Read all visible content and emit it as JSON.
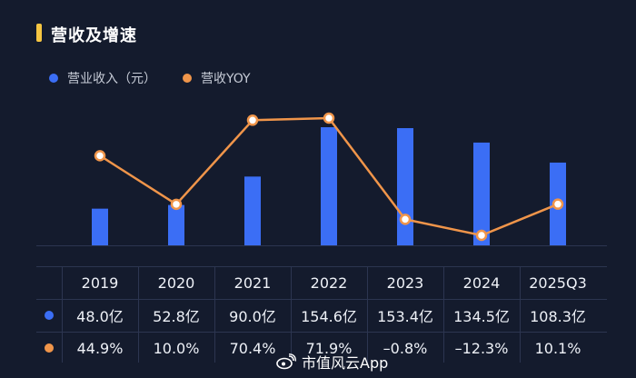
{
  "section_title": "营收及增速",
  "colors": {
    "accent": "#f5c542",
    "bar": "#3b6ef5",
    "line": "#f0954a",
    "background": "#141b2d"
  },
  "legend": {
    "revenue_label": "营业收入（元）",
    "yoy_label": "营收YOY"
  },
  "chart_data": {
    "type": "bar",
    "title": "营收及增速",
    "categories": [
      "2019",
      "2020",
      "2021",
      "2022",
      "2023",
      "2024",
      "2025Q3"
    ],
    "series": [
      {
        "name": "营业收入（元）",
        "type": "bar",
        "values": [
          48.0,
          52.8,
          90.0,
          154.6,
          153.4,
          134.5,
          108.3
        ],
        "labels": [
          "48.0亿",
          "52.8亿",
          "90.0亿",
          "154.6亿",
          "153.4亿",
          "134.5亿",
          "108.3亿"
        ]
      },
      {
        "name": "营收YOY",
        "type": "line",
        "values": [
          44.9,
          10.0,
          70.4,
          71.9,
          -0.8,
          -12.3,
          10.1
        ],
        "labels": [
          "44.9%",
          "10.0%",
          "70.4%",
          "71.9%",
          "–0.8%",
          "–12.3%",
          "10.1%"
        ]
      }
    ],
    "xlabel": "",
    "ylabel": "",
    "bar_ylim": [
      0,
      160
    ],
    "line_ylim": [
      -20,
      80
    ],
    "grid": false,
    "legend_position": "top-left"
  },
  "watermark": {
    "text": "市值风云App",
    "icon": "weibo-icon"
  }
}
